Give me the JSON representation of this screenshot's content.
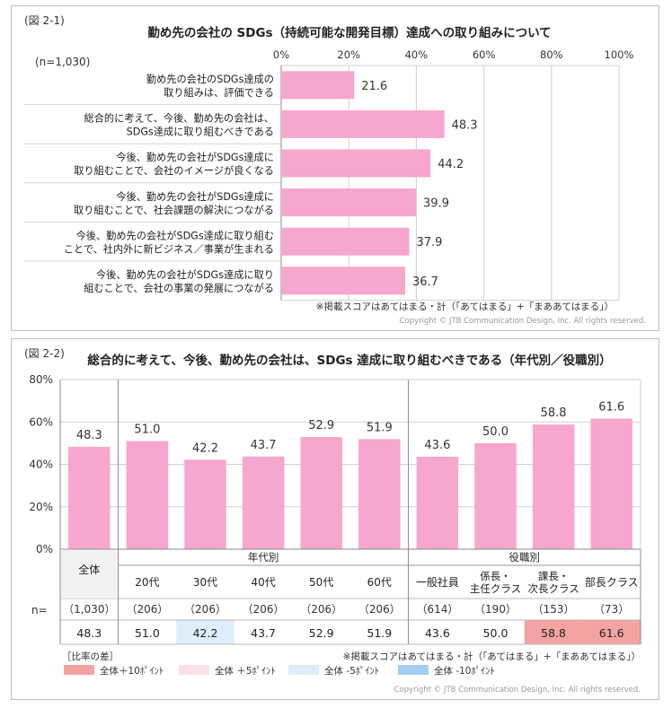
{
  "chart_data": [
    {
      "type": "bar",
      "orientation": "horizontal",
      "figure_label": "(図 2-1)",
      "title": "勤め先の会社の SDGs（持続可能な開発目標）達成への取り組みについて",
      "sample": "(n=1,030)",
      "xlim": [
        0,
        100
      ],
      "x_ticks": [
        "0%",
        "20%",
        "40%",
        "60%",
        "80%",
        "100%"
      ],
      "grid": true,
      "bar_color": "#f7a6cf",
      "categories": [
        [
          "勤め先の会社のSDGs達成の",
          "取り組みは、評価できる"
        ],
        [
          "総合的に考えて、今後、勤め先の会社は、",
          "SDGs達成に取り組むべきである"
        ],
        [
          "今後、勤め先の会社がSDGs達成に",
          "取り組むことで、会社のイメージが良くなる"
        ],
        [
          "今後、勤め先の会社がSDGs達成に",
          "取り組むことで、社会課題の解決につながる"
        ],
        [
          "今後、勤め先の会社がSDGs達成に取り組む",
          "ことで、社内外に新ビジネス／事業が生まれる"
        ],
        [
          "今後、勤め先の会社がSDGs達成に取り",
          "組むことで、会社の事業の発展につながる"
        ]
      ],
      "values": [
        21.6,
        48.3,
        44.2,
        39.9,
        37.9,
        36.7
      ],
      "value_labels": [
        "21.6",
        "48.3",
        "44.2",
        "39.9",
        "37.9",
        "36.7"
      ],
      "note": "※掲載スコアはあてはまる・計（「あてはまる」+「まああてはまる」）",
      "copyright": "Copyright © JTB Communication Design, Inc. All rights reserved."
    },
    {
      "type": "bar",
      "figure_label": "(図 2-2)",
      "title": "総合的に考えて、今後、勤め先の会社は、SDGs 達成に取り組むべきである（年代別／役職別）",
      "ylim": [
        0,
        80
      ],
      "y_ticks": [
        "0%",
        "20%",
        "40%",
        "60%",
        "80%"
      ],
      "grid": true,
      "bar_color": "#f7a6cf",
      "group_labels": {
        "age": "年代別",
        "position": "役職別"
      },
      "categories": [
        [
          "全体"
        ],
        [
          "20代"
        ],
        [
          "30代"
        ],
        [
          "40代"
        ],
        [
          "50代"
        ],
        [
          "60代"
        ],
        [
          "一般社員"
        ],
        [
          "係長・",
          "主任クラス"
        ],
        [
          "課長・",
          "次長クラス"
        ],
        [
          "部長クラス"
        ]
      ],
      "values": [
        48.3,
        51.0,
        42.2,
        43.7,
        52.9,
        51.9,
        43.6,
        50.0,
        58.8,
        61.6
      ],
      "value_labels": [
        "48.3",
        "51.0",
        "42.2",
        "43.7",
        "52.9",
        "51.9",
        "43.6",
        "50.0",
        "58.8",
        "61.6"
      ],
      "n_label": "n=",
      "n_values": [
        "（1,030）",
        "（206）",
        "（206）",
        "（206）",
        "（206）",
        "（206）",
        "（614）",
        "（190）",
        "（153）",
        "（73）"
      ],
      "table_values": [
        "48.3",
        "51.0",
        "42.2",
        "43.7",
        "52.9",
        "51.9",
        "43.6",
        "50.0",
        "58.8",
        "61.6"
      ],
      "cell_highlight": [
        "",
        "",
        "minus5",
        "",
        "",
        "",
        "",
        "",
        "plus10",
        "plus10"
      ],
      "legend_title": "［比率の差］",
      "legend": [
        {
          "key": "plus10",
          "label": "全体＋10ﾎﾟｲﾝﾄ",
          "color": "#f4a3a3"
        },
        {
          "key": "plus5",
          "label": "全体 ＋5ﾎﾟｲﾝﾄ",
          "color": "#fde0e4"
        },
        {
          "key": "minus5",
          "label": "全体 -5ﾎﾟｲﾝﾄ",
          "color": "#ddeefa"
        },
        {
          "key": "minus10",
          "label": "全体 -10ﾎﾟｲﾝﾄ",
          "color": "#a3cdf2"
        }
      ],
      "note": "※掲載スコアはあてはまる・計（「あてはまる」+「まああてはまる」）",
      "copyright": "Copyright © JTB Communication Design, Inc. All rights reserved."
    }
  ]
}
